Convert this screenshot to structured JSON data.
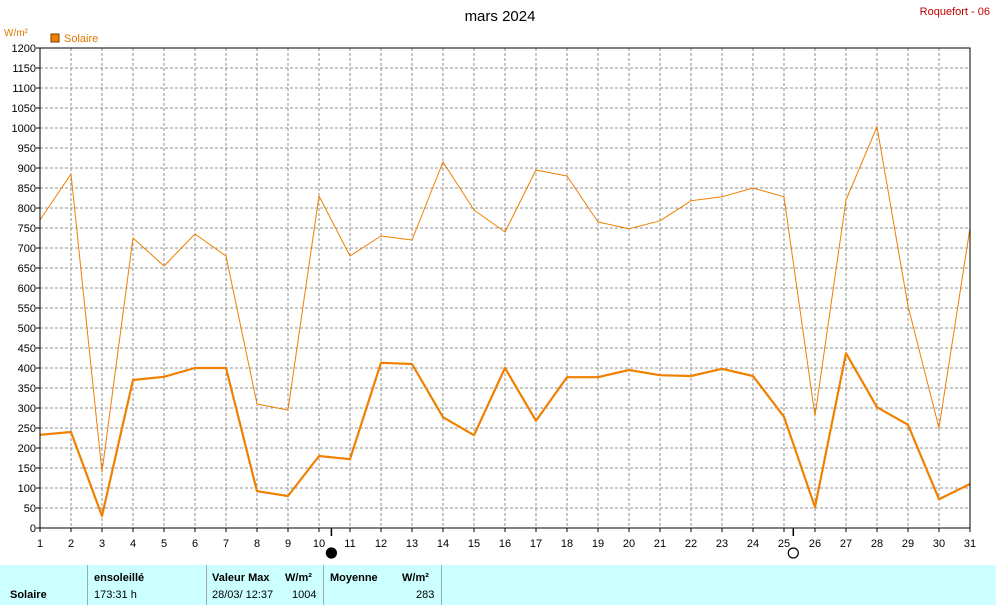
{
  "header": {
    "title": "mars 2024",
    "station": "Roquefort - 06"
  },
  "chart_data": {
    "type": "line",
    "ylabel": "W/m²",
    "ylim": [
      0,
      1200
    ],
    "ytick_step": 50,
    "x": [
      1,
      2,
      3,
      4,
      5,
      6,
      7,
      8,
      9,
      10,
      11,
      12,
      13,
      14,
      15,
      16,
      17,
      18,
      19,
      20,
      21,
      22,
      23,
      24,
      25,
      26,
      27,
      28,
      29,
      30,
      31
    ],
    "grid": true,
    "legend": {
      "position": "top-left",
      "label": "Solaire",
      "color": "#f08000"
    },
    "series": [
      {
        "name": "Solaire",
        "kind": "max",
        "color": "#f08000",
        "values": [
          770,
          885,
          140,
          725,
          655,
          735,
          680,
          310,
          295,
          830,
          680,
          730,
          720,
          915,
          795,
          740,
          895,
          880,
          765,
          748,
          768,
          818,
          828,
          850,
          828,
          280,
          820,
          1003,
          555,
          250,
          750
        ]
      },
      {
        "name": "Solaire",
        "kind": "mean",
        "color": "#f08000",
        "values": [
          233,
          240,
          30,
          370,
          378,
          400,
          400,
          92,
          80,
          180,
          172,
          413,
          410,
          277,
          232,
          400,
          268,
          377,
          377,
          395,
          382,
          380,
          398,
          380,
          278,
          52,
          437,
          302,
          258,
          72,
          110
        ]
      }
    ],
    "moon_markers": [
      {
        "day": 10.4,
        "phase": "new",
        "symbol": "●"
      },
      {
        "day": 25.3,
        "phase": "full",
        "symbol": "○"
      }
    ]
  },
  "footer": {
    "row_label": "Solaire",
    "sun_header": "ensoleillé",
    "sun_value": "173:31 h",
    "max_header": "Valeur Max",
    "max_unit": "W/m²",
    "max_date": "28/03/  12:37",
    "max_value": "1004",
    "mean_header": "Moyenne",
    "mean_unit": "W/m²",
    "mean_value": "283"
  }
}
